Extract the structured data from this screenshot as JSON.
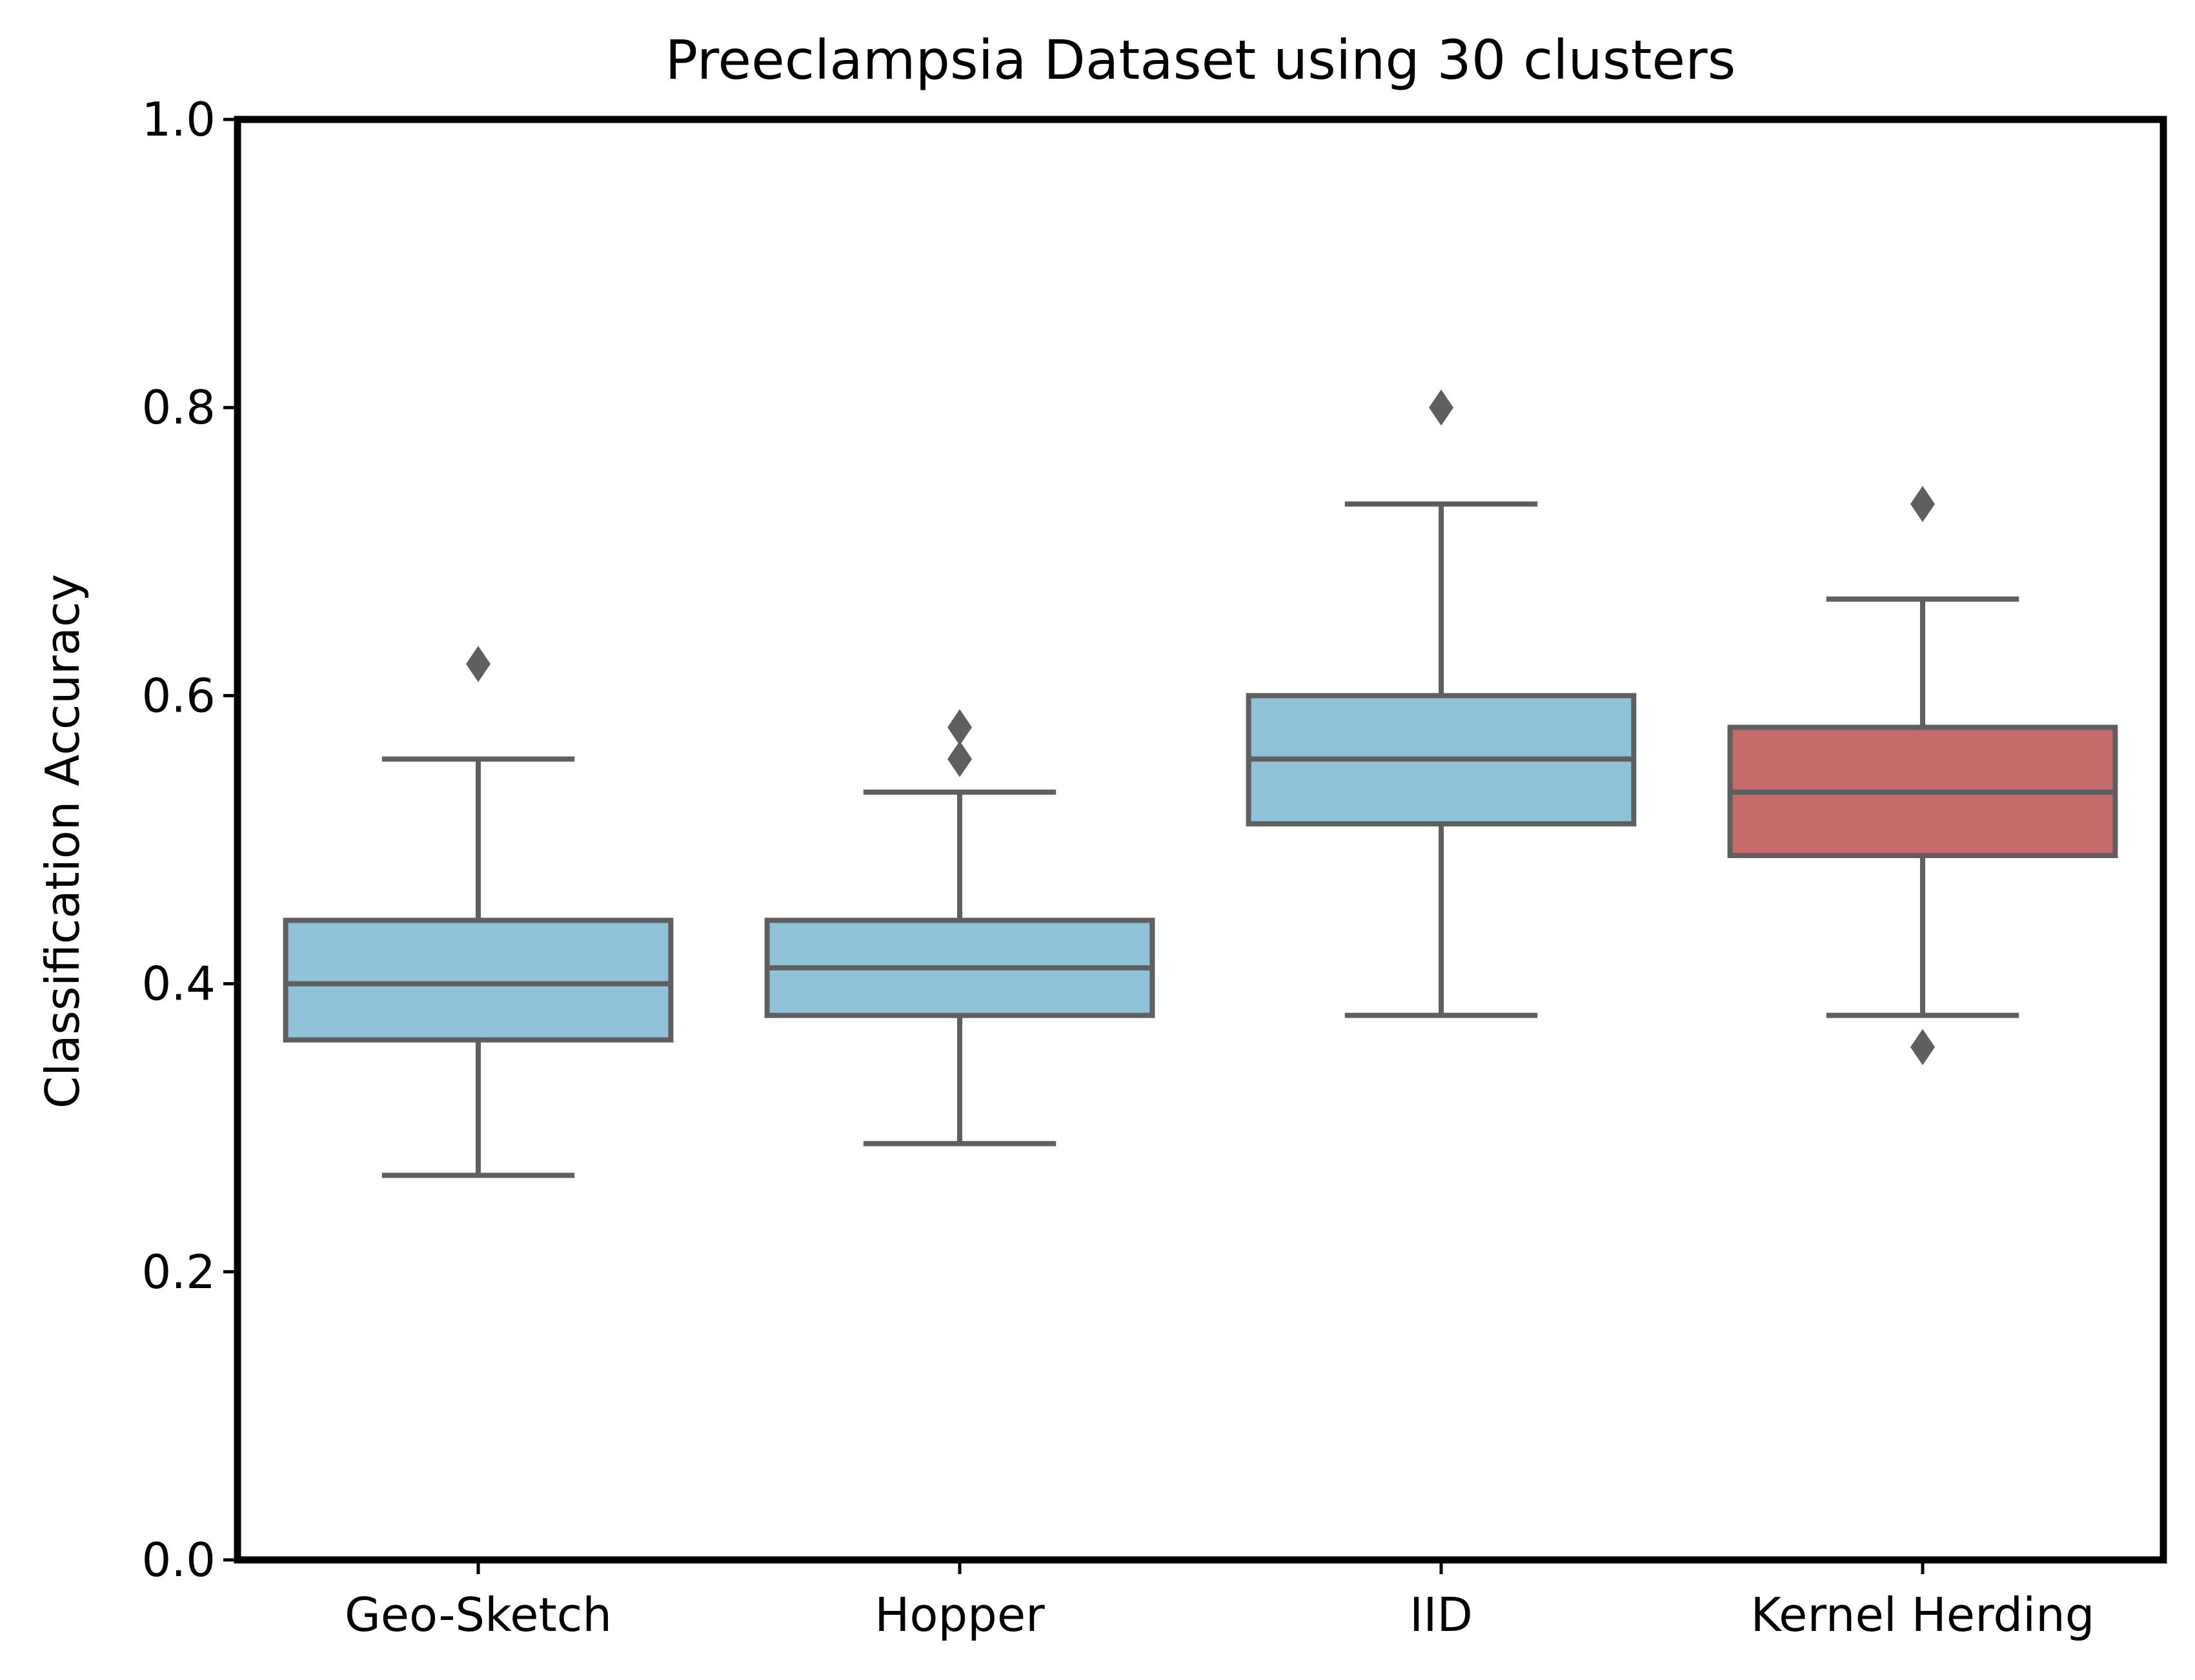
{
  "chart_data": {
    "type": "box",
    "title": "Preeclampsia Dataset using 30 clusters",
    "xlabel": "",
    "ylabel": "Classification Accuracy",
    "ylim": [
      0,
      1
    ],
    "yticks": [
      "0.0",
      "0.2",
      "0.4",
      "0.6",
      "0.8",
      "1.0"
    ],
    "ytick_values": [
      0,
      0.2,
      0.4,
      0.6,
      0.8,
      1.0
    ],
    "categories": [
      "Geo-Sketch",
      "Hopper",
      "IID",
      "Kernel Herding"
    ],
    "grid": false,
    "series": [
      {
        "category": "Geo-Sketch",
        "whisker_low": 0.267,
        "q1": 0.361,
        "median": 0.4,
        "q3": 0.444,
        "whisker_high": 0.556,
        "outliers": [
          0.622
        ],
        "color": "#8fc1d8"
      },
      {
        "category": "Hopper",
        "whisker_low": 0.289,
        "q1": 0.378,
        "median": 0.411,
        "q3": 0.444,
        "whisker_high": 0.533,
        "outliers": [
          0.556,
          0.578
        ],
        "color": "#8fc1d8"
      },
      {
        "category": "IID",
        "whisker_low": 0.378,
        "q1": 0.511,
        "median": 0.556,
        "q3": 0.6,
        "whisker_high": 0.733,
        "outliers": [
          0.8
        ],
        "color": "#8fc1d8"
      },
      {
        "category": "Kernel Herding",
        "whisker_low": 0.378,
        "q1": 0.489,
        "median": 0.533,
        "q3": 0.578,
        "whisker_high": 0.667,
        "outliers": [
          0.356,
          0.733
        ],
        "color": "#c56b6b"
      }
    ],
    "line_color": "#5f5f5f"
  }
}
